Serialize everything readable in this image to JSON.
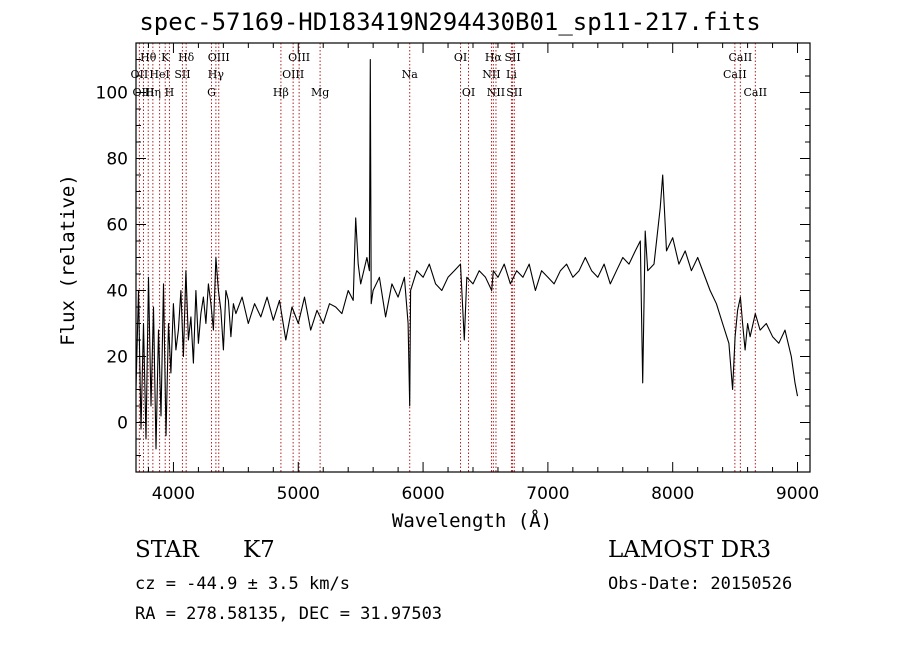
{
  "page": {
    "title": "spec-57169-HD183419N294430B01_sp11-217.fits"
  },
  "info": {
    "object_class": "STAR",
    "subclass": "K7",
    "survey": "LAMOST DR3",
    "cz": "cz = -44.9 ± 3.5 km/s",
    "obs_date": "Obs-Date: 20150526",
    "radec": "RA = 278.58135, DEC =  31.97503"
  },
  "colors": {
    "spectrum": "#000000",
    "line_marker": "#b22222",
    "axes": "#000000"
  },
  "chart_data": {
    "type": "line",
    "title": "spec-57169-HD183419N294430B01_sp11-217.fits",
    "xlabel": "Wavelength (Å)",
    "ylabel": "Flux (relative)",
    "xlim": [
      3700,
      9100
    ],
    "ylim": [
      -15,
      115
    ],
    "xticks": [
      4000,
      5000,
      6000,
      7000,
      8000,
      9000
    ],
    "yticks": [
      0,
      20,
      40,
      60,
      80,
      100
    ],
    "grid": false,
    "series": [
      {
        "name": "flux",
        "x": [
          3700,
          3720,
          3740,
          3760,
          3780,
          3800,
          3820,
          3840,
          3860,
          3880,
          3900,
          3920,
          3940,
          3960,
          3980,
          4000,
          4020,
          4040,
          4060,
          4080,
          4100,
          4120,
          4140,
          4160,
          4180,
          4200,
          4220,
          4240,
          4260,
          4280,
          4300,
          4320,
          4340,
          4360,
          4380,
          4400,
          4420,
          4440,
          4460,
          4480,
          4500,
          4550,
          4600,
          4650,
          4700,
          4750,
          4800,
          4850,
          4900,
          4950,
          5000,
          5050,
          5100,
          5150,
          5200,
          5250,
          5300,
          5350,
          5400,
          5440,
          5460,
          5480,
          5500,
          5550,
          5570,
          5577,
          5584,
          5600,
          5650,
          5700,
          5750,
          5800,
          5850,
          5880,
          5893,
          5900,
          5950,
          6000,
          6050,
          6100,
          6150,
          6200,
          6250,
          6300,
          6330,
          6350,
          6400,
          6450,
          6500,
          6550,
          6563,
          6600,
          6650,
          6700,
          6750,
          6800,
          6850,
          6900,
          6950,
          7000,
          7050,
          7100,
          7150,
          7200,
          7250,
          7300,
          7350,
          7400,
          7450,
          7500,
          7550,
          7600,
          7650,
          7700,
          7740,
          7760,
          7780,
          7800,
          7850,
          7900,
          7920,
          7950,
          8000,
          8050,
          8100,
          8150,
          8200,
          8250,
          8300,
          8350,
          8400,
          8450,
          8480,
          8500,
          8520,
          8542,
          8560,
          8580,
          8600,
          8620,
          8662,
          8700,
          8750,
          8800,
          8850,
          8900,
          8950,
          8980,
          9000
        ],
        "values": [
          10,
          40,
          -2,
          30,
          -5,
          44,
          5,
          35,
          -8,
          28,
          2,
          42,
          -4,
          30,
          15,
          36,
          22,
          28,
          40,
          20,
          46,
          25,
          32,
          18,
          40,
          24,
          33,
          38,
          30,
          42,
          36,
          28,
          50,
          40,
          34,
          22,
          40,
          37,
          26,
          36,
          33,
          38,
          30,
          36,
          32,
          38,
          31,
          37,
          25,
          35,
          30,
          38,
          28,
          34,
          30,
          36,
          35,
          33,
          40,
          37,
          62,
          48,
          42,
          50,
          46,
          110,
          36,
          40,
          44,
          32,
          42,
          38,
          44,
          30,
          5,
          40,
          46,
          44,
          48,
          42,
          40,
          44,
          46,
          48,
          25,
          44,
          42,
          46,
          44,
          40,
          46,
          44,
          48,
          42,
          46,
          44,
          48,
          40,
          46,
          44,
          42,
          46,
          48,
          44,
          46,
          50,
          46,
          44,
          48,
          42,
          46,
          50,
          48,
          52,
          55,
          12,
          58,
          46,
          48,
          65,
          75,
          52,
          56,
          48,
          52,
          46,
          50,
          45,
          40,
          36,
          30,
          24,
          10,
          26,
          34,
          38,
          30,
          22,
          30,
          26,
          33,
          28,
          30,
          26,
          24,
          28,
          20,
          12,
          8
        ]
      }
    ],
    "line_markers": {
      "row1": [
        {
          "label": "Hθ",
          "x": 3798
        },
        {
          "label": "K",
          "x": 3934
        },
        {
          "label": "Hδ",
          "x": 4102
        },
        {
          "label": "OIII",
          "x": 4363
        },
        {
          "label": "OIII",
          "x": 5007
        },
        {
          "label": "OI",
          "x": 6300
        },
        {
          "label": "Hα",
          "x": 6563
        },
        {
          "label": "SII",
          "x": 6717
        },
        {
          "label": "CaII",
          "x": 8542
        }
      ],
      "row2": [
        {
          "label": "OII",
          "x": 3727
        },
        {
          "label": "HeI",
          "x": 3889
        },
        {
          "label": "SII",
          "x": 4072
        },
        {
          "label": "Hγ",
          "x": 4340
        },
        {
          "label": "OIII",
          "x": 4959
        },
        {
          "label": "Na",
          "x": 5893
        },
        {
          "label": "NII",
          "x": 6548
        },
        {
          "label": "Li",
          "x": 6708
        },
        {
          "label": "CaII",
          "x": 8498
        }
      ],
      "row3": [
        {
          "label": "OIII",
          "x": 3760
        },
        {
          "label": "Hη",
          "x": 3835
        },
        {
          "label": "H",
          "x": 3968
        },
        {
          "label": "G",
          "x": 4305
        },
        {
          "label": "Hβ",
          "x": 4861
        },
        {
          "label": "Mg",
          "x": 5175
        },
        {
          "label": "OI",
          "x": 6364
        },
        {
          "label": "NII",
          "x": 6584
        },
        {
          "label": "SII",
          "x": 6731
        },
        {
          "label": "CaII",
          "x": 8662
        }
      ]
    }
  }
}
